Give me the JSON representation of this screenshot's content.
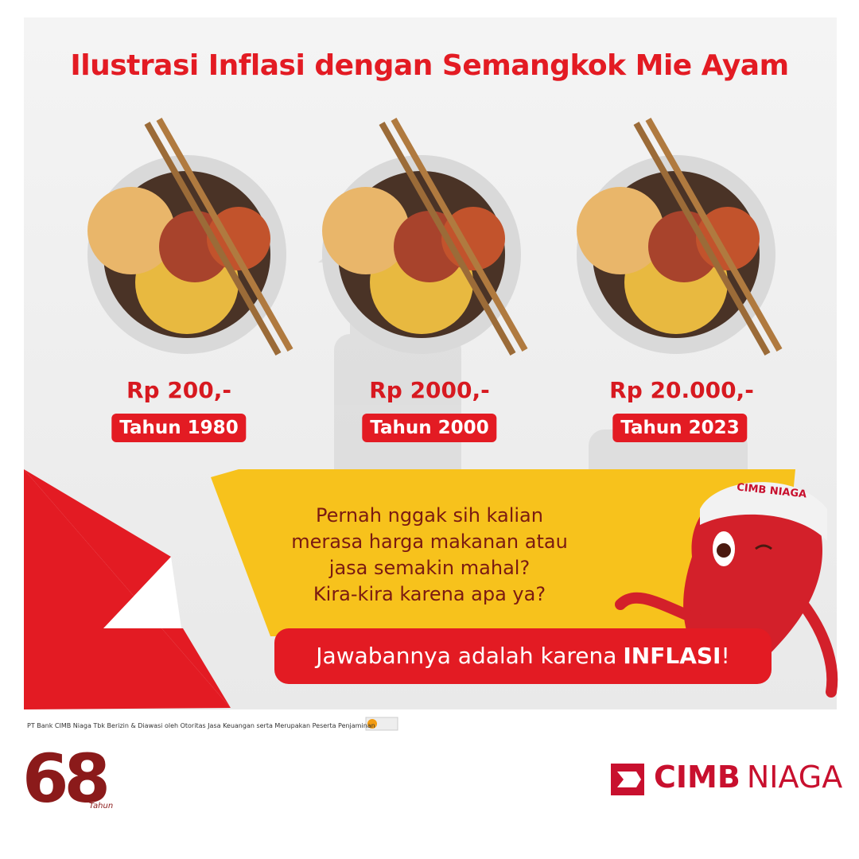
{
  "header": {
    "title": "Ilustrasi Inflasi dengan Semangkok Mie Ayam"
  },
  "items": [
    {
      "price": "Rp 200,-",
      "year": "Tahun 1980"
    },
    {
      "price": "Rp 2000,-",
      "year": "Tahun 2000"
    },
    {
      "price": "Rp 20.000,-",
      "year": "Tahun 2023"
    }
  ],
  "question": [
    "Pernah nggak sih kalian",
    "merasa harga makanan atau",
    "jasa semakin mahal?",
    "Kira-kira karena apa ya?"
  ],
  "answer": {
    "text": "Jawabannya adalah karena",
    "emphasis": "INFLASI",
    "suffix": "!"
  },
  "mascot": {
    "cap_text": "CIMB NIAGA"
  },
  "footer": {
    "disclaimer": "PT Bank CIMB Niaga Tbk Berizin & Diawasi oleh Otoritas Jasa Keuangan serta Merupakan Peserta Penjaminan",
    "anniversary": {
      "number": "68",
      "label": "Tahun"
    },
    "brand": {
      "name": "CIMB",
      "suffix": "NIAGA"
    }
  }
}
